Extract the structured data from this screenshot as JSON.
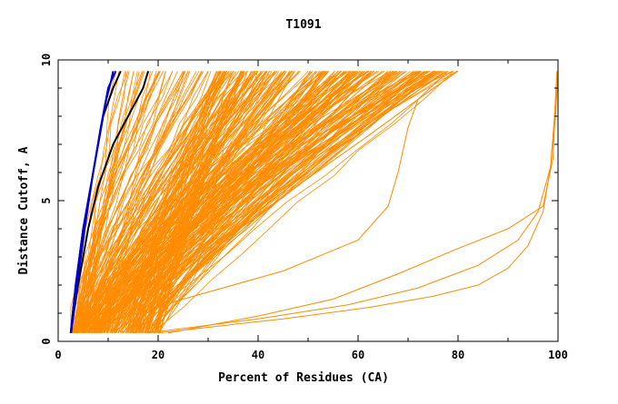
{
  "chart_data": {
    "type": "line",
    "title": "T1091",
    "xlabel": "Percent of Residues (CA)",
    "ylabel": "Distance Cutoff, A",
    "xlim": [
      0,
      100
    ],
    "ylim": [
      0,
      10
    ],
    "x_ticks": [
      "0",
      "20",
      "40",
      "60",
      "80",
      "100"
    ],
    "y_ticks": [
      "0",
      "5",
      "10"
    ],
    "grid": false,
    "legend": "none",
    "colors": {
      "models": "#ff8c00",
      "black_series": "#000000",
      "blue_series": "#0000cc"
    },
    "model_series_count": 300,
    "series": [
      {
        "color": "#ff8c00",
        "x": [
          2.5,
          7,
          12,
          20,
          30,
          42,
          55,
          65,
          72
        ],
        "y": [
          0.3,
          1,
          1.8,
          3,
          4.5,
          6,
          7.5,
          8.8,
          9.6
        ]
      },
      {
        "color": "#ff8c00",
        "x": [
          2.5,
          6,
          10,
          16,
          24,
          34,
          45,
          55,
          62
        ],
        "y": [
          0.3,
          1,
          2,
          3.2,
          4.6,
          6.2,
          7.6,
          8.8,
          9.6
        ]
      },
      {
        "color": "#ff8c00",
        "x": [
          3,
          8,
          15,
          25,
          38,
          50,
          62,
          72,
          80
        ],
        "y": [
          0.3,
          0.9,
          1.6,
          2.8,
          4.2,
          5.8,
          7.3,
          8.6,
          9.6
        ]
      },
      {
        "color": "#ff8c00",
        "x": [
          3,
          5,
          8,
          11,
          14,
          17
        ],
        "y": [
          0.3,
          2,
          4,
          6,
          8,
          9.6
        ]
      },
      {
        "color": "#ff8c00",
        "x": [
          3,
          6,
          10,
          15,
          20,
          25
        ],
        "y": [
          0.3,
          2,
          4,
          6,
          8,
          9.6
        ]
      },
      {
        "color": "#ff8c00",
        "x": [
          20,
          45,
          62,
          75,
          84,
          90,
          94,
          97,
          98.5,
          99.3,
          99.8
        ],
        "y": [
          0.3,
          0.8,
          1.2,
          1.6,
          2,
          2.6,
          3.4,
          4.6,
          6.2,
          8,
          9.6
        ]
      },
      {
        "color": "#ff8c00",
        "x": [
          18,
          40,
          58,
          72,
          84,
          92,
          96,
          98.5,
          99.5,
          100
        ],
        "y": [
          0.3,
          0.8,
          1.3,
          1.9,
          2.7,
          3.6,
          4.6,
          6.2,
          8,
          9.6
        ]
      },
      {
        "color": "#ff8c00",
        "x": [
          22,
          40,
          55,
          68,
          80,
          90,
          97,
          99,
          99.8
        ],
        "y": [
          0.3,
          0.9,
          1.5,
          2.4,
          3.3,
          4,
          4.8,
          6.5,
          9.6
        ]
      },
      {
        "color": "#ff8c00",
        "x": [
          3,
          25,
          45,
          60,
          66,
          68,
          70,
          72,
          78
        ],
        "y": [
          0.3,
          1.5,
          2.5,
          3.6,
          4.8,
          6,
          7.6,
          8.6,
          9.6
        ]
      },
      {
        "color": "#000000",
        "x": [
          2.5,
          4,
          6,
          8,
          11,
          14,
          17,
          18
        ],
        "y": [
          0.3,
          2,
          4,
          5.5,
          7,
          8,
          9,
          9.6
        ]
      },
      {
        "color": "#000000",
        "x": [
          2.5,
          3.5,
          5,
          7,
          9,
          11,
          12.5
        ],
        "y": [
          0.3,
          2,
          4,
          6,
          8,
          9,
          9.6
        ]
      },
      {
        "color": "#0000cc",
        "x": [
          2.5,
          3.5,
          5,
          6.5,
          8,
          9.5,
          10.5,
          11
        ],
        "y": [
          0.3,
          2,
          4,
          5.5,
          7,
          8.5,
          9.2,
          9.6
        ]
      },
      {
        "color": "#0000cc",
        "x": [
          2.6,
          3.8,
          5.3,
          7,
          8.5,
          10,
          11.5
        ],
        "y": [
          0.3,
          2,
          4,
          6,
          7.6,
          9,
          9.6
        ]
      }
    ]
  }
}
